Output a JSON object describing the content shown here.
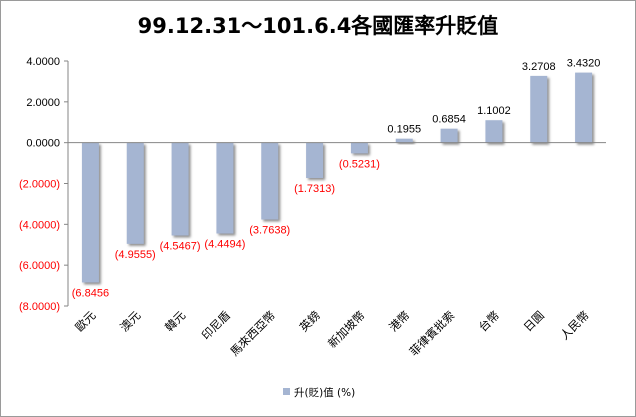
{
  "chart_data": {
    "type": "bar",
    "title": "99.12.31～101.6.4各國匯率升貶值",
    "categories": [
      "歐元",
      "澳元",
      "韓元",
      "印尼盾",
      "馬來西亞幣",
      "英鎊",
      "新加坡幣",
      "港幣",
      "菲律賓批索",
      "台幣",
      "日圓",
      "人民幣"
    ],
    "series": [
      {
        "name": "升(貶)值 (%)",
        "values": [
          -6.8456,
          -4.9555,
          -4.5467,
          -4.4494,
          -3.7638,
          -1.7313,
          -0.5231,
          0.1955,
          0.6854,
          1.1002,
          3.2708,
          3.432
        ]
      }
    ],
    "data_labels": [
      "(6.8456",
      "(4.9555)",
      "(4.5467)",
      "(4.4494)",
      "(3.7638)",
      "(1.7313)",
      "(0.5231)",
      "0.1955",
      "0.6854",
      "1.1002",
      "3.2708",
      "3.4320"
    ],
    "y_ticks": [
      "4.0000",
      "2.0000",
      "0.0000",
      "(2.0000)",
      "(4.0000)",
      "(6.0000)",
      "(8.0000)"
    ],
    "ylim": [
      -8,
      4
    ],
    "grid": false,
    "legend_position": "bottom",
    "colors": {
      "bar": "#a5b5d2",
      "bar_shadow": "#8c8c8c",
      "negative_text": "#ff0000",
      "positive_text": "#000000"
    }
  }
}
